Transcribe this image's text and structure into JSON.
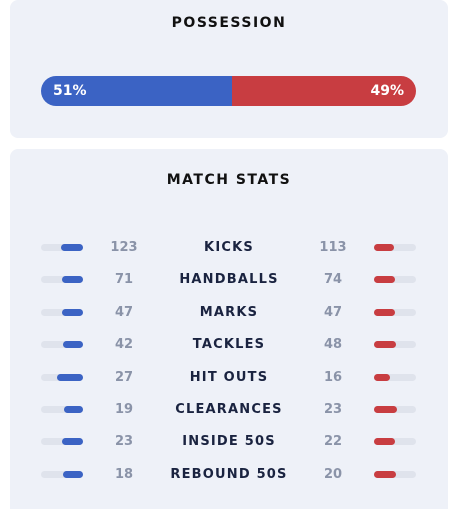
{
  "colors": {
    "home": "#3b63c4",
    "away": "#c83d41"
  },
  "possession": {
    "title": "POSSESSION",
    "home_pct": 51,
    "away_pct": 49,
    "home_label": "51%",
    "away_label": "49%"
  },
  "match_stats": {
    "title": "MATCH STATS",
    "rows": [
      {
        "name": "KICKS",
        "home": "123",
        "away": "113",
        "home_share": 0.52,
        "away_share": 0.48
      },
      {
        "name": "HANDBALLS",
        "home": "71",
        "away": "74",
        "home_share": 0.49,
        "away_share": 0.51
      },
      {
        "name": "MARKS",
        "home": "47",
        "away": "47",
        "home_share": 0.5,
        "away_share": 0.5
      },
      {
        "name": "TACKLES",
        "home": "42",
        "away": "48",
        "home_share": 0.47,
        "away_share": 0.53
      },
      {
        "name": "HIT OUTS",
        "home": "27",
        "away": "16",
        "home_share": 0.63,
        "away_share": 0.37
      },
      {
        "name": "CLEARANCES",
        "home": "19",
        "away": "23",
        "home_share": 0.45,
        "away_share": 0.55
      },
      {
        "name": "INSIDE 50S",
        "home": "23",
        "away": "22",
        "home_share": 0.51,
        "away_share": 0.49
      },
      {
        "name": "REBOUND 50S",
        "home": "18",
        "away": "20",
        "home_share": 0.47,
        "away_share": 0.53
      }
    ]
  }
}
